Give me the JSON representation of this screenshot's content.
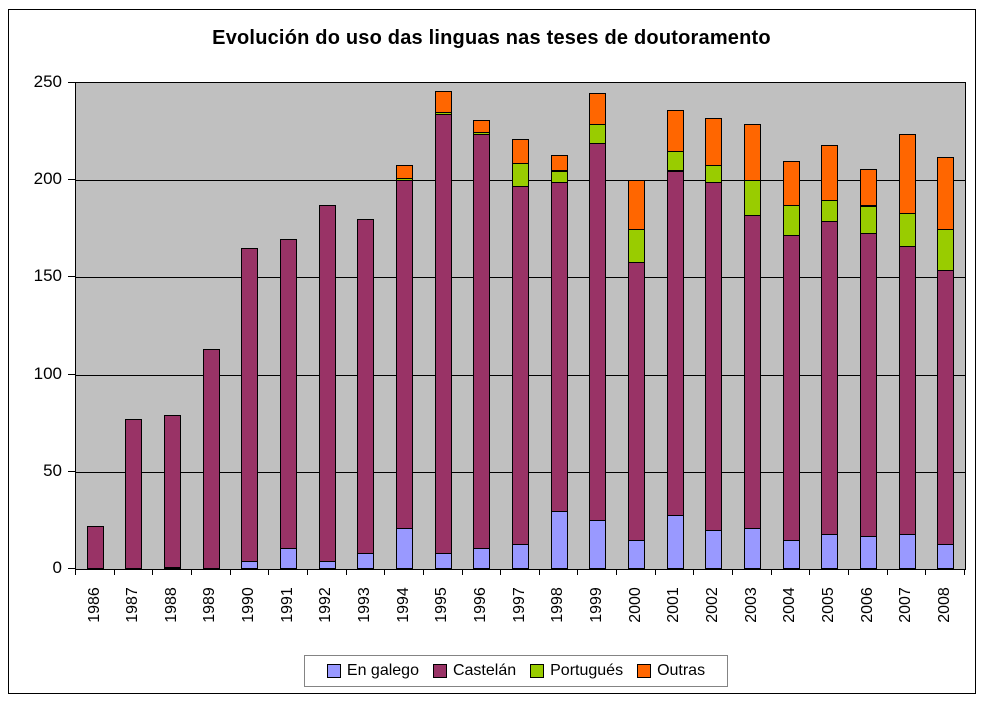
{
  "chart_data": {
    "type": "bar",
    "stacked": true,
    "title": "Evolución do uso das linguas nas teses de doutoramento",
    "categories": [
      "1986",
      "1987",
      "1988",
      "1989",
      "1990",
      "1991",
      "1992",
      "1993",
      "1994",
      "1995",
      "1996",
      "1997",
      "1998",
      "1999",
      "2000",
      "2001",
      "2002",
      "2003",
      "2004",
      "2005",
      "2006",
      "2007",
      "2008"
    ],
    "series": [
      {
        "name": "En galego",
        "color": "#9999FF",
        "values": [
          0,
          0,
          1,
          0,
          4,
          11,
          4,
          8,
          21,
          8,
          11,
          13,
          30,
          25,
          15,
          28,
          20,
          21,
          15,
          18,
          17,
          18,
          13
        ]
      },
      {
        "name": "Castelán",
        "color": "#993366",
        "values": [
          22,
          77,
          78,
          113,
          161,
          159,
          183,
          172,
          179,
          226,
          213,
          184,
          169,
          194,
          143,
          177,
          179,
          161,
          157,
          161,
          156,
          148,
          141
        ]
      },
      {
        "name": "Portugués",
        "color": "#99CC00",
        "values": [
          0,
          0,
          0,
          0,
          0,
          0,
          0,
          0,
          1,
          1,
          1,
          12,
          6,
          10,
          17,
          10,
          9,
          18,
          15,
          11,
          14,
          17,
          21
        ]
      },
      {
        "name": "Outras",
        "color": "#FF6600",
        "values": [
          0,
          0,
          0,
          0,
          0,
          0,
          0,
          0,
          7,
          11,
          6,
          12,
          8,
          16,
          25,
          21,
          24,
          29,
          23,
          28,
          19,
          41,
          37
        ]
      }
    ],
    "ylim": [
      0,
      250
    ],
    "y_ticks": [
      0,
      50,
      100,
      150,
      200,
      250
    ],
    "xlabel": "",
    "ylabel": "",
    "grid": true,
    "legend_position": "bottom",
    "plot_bg": "#C0C0C0",
    "gridline_color": "#000000",
    "bar_border_color": "#000000",
    "frame_border_color": "#000000",
    "legend_border_color": "#848484"
  }
}
